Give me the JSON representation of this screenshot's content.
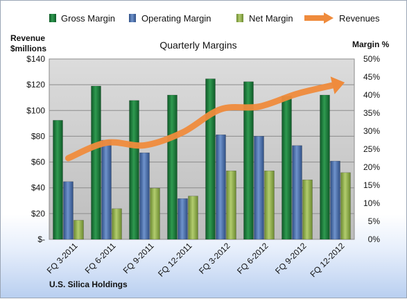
{
  "chart_data": {
    "type": "bar",
    "title": "Quarterly Margins",
    "categories": [
      "FQ 3-2011",
      "FQ 6-2011",
      "FQ 9-2011",
      "FQ 12-2011",
      "FQ 3-2012",
      "FQ 6-2012",
      "FQ 9-2012",
      "FQ 12-2012"
    ],
    "series": [
      {
        "name": "Gross Margin",
        "axis": "right",
        "color": "#1f7a3a",
        "values": [
          0.33,
          0.425,
          0.385,
          0.4,
          0.445,
          0.437,
          0.397,
          0.4
        ]
      },
      {
        "name": "Operating Margin",
        "axis": "right",
        "color": "#4a6fae",
        "values": [
          0.16,
          0.275,
          0.24,
          0.113,
          0.29,
          0.286,
          0.26,
          0.217
        ]
      },
      {
        "name": "Net Margin",
        "axis": "right",
        "color": "#8fac4c",
        "values": [
          0.053,
          0.085,
          0.142,
          0.12,
          0.19,
          0.19,
          0.165,
          0.185
        ]
      },
      {
        "name": "Revenues",
        "axis": "left",
        "type": "line",
        "color": "#ef8b3c",
        "values": [
          63,
          75,
          73,
          83,
          101,
          103,
          113,
          120
        ]
      }
    ],
    "y_left": {
      "label_line1": "Revenue",
      "label_line2": "$millions",
      "range": [
        0,
        140
      ],
      "ticks": [
        "$-",
        "$20",
        "$40",
        "$60",
        "$80",
        "$100",
        "$120",
        "$140"
      ]
    },
    "y_right": {
      "label": "Margin %",
      "range": [
        0,
        0.5
      ],
      "ticks": [
        "0%",
        "5%",
        "10%",
        "15%",
        "20%",
        "25%",
        "30%",
        "35%",
        "40%",
        "45%",
        "50%"
      ]
    },
    "grid": true,
    "legend_position": "top"
  },
  "footer": {
    "company": "U.S. Silica Holdings"
  }
}
